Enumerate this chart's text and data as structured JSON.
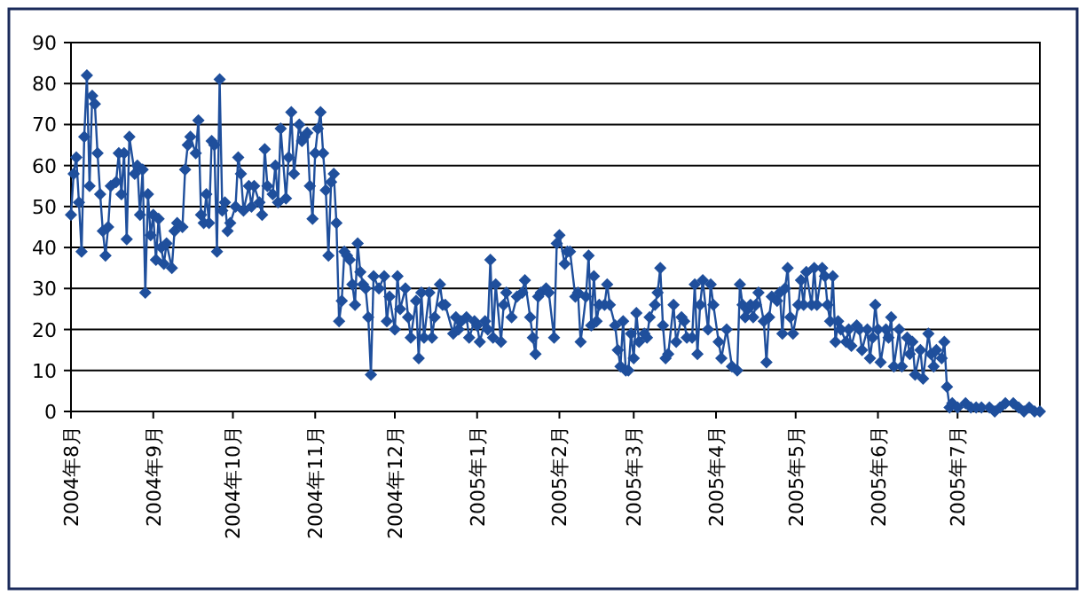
{
  "chart_data": {
    "type": "line",
    "x": [
      "2004-08-01",
      "2004-08-02",
      "2004-08-03",
      "2004-08-04",
      "2004-08-05",
      "2004-08-06",
      "2004-08-07",
      "2004-08-08",
      "2004-08-09",
      "2004-08-10",
      "2004-08-11",
      "2004-08-12",
      "2004-08-13",
      "2004-08-14",
      "2004-08-15",
      "2004-08-16",
      "2004-08-18",
      "2004-08-19",
      "2004-08-20",
      "2004-08-21",
      "2004-08-22",
      "2004-08-23",
      "2004-08-25",
      "2004-08-26",
      "2004-08-27",
      "2004-08-28",
      "2004-08-29",
      "2004-08-30",
      "2004-08-31",
      "2004-09-01",
      "2004-09-02",
      "2004-09-03",
      "2004-09-04",
      "2004-09-05",
      "2004-09-06",
      "2004-09-08",
      "2004-09-09",
      "2004-09-10",
      "2004-09-12",
      "2004-09-13",
      "2004-09-14",
      "2004-09-15",
      "2004-09-17",
      "2004-09-18",
      "2004-09-19",
      "2004-09-20",
      "2004-09-21",
      "2004-09-22",
      "2004-09-23",
      "2004-09-24",
      "2004-09-25",
      "2004-09-26",
      "2004-09-27",
      "2004-09-28",
      "2004-09-29",
      "2004-09-30",
      "2004-10-02",
      "2004-10-03",
      "2004-10-04",
      "2004-10-05",
      "2004-10-07",
      "2004-10-08",
      "2004-10-09",
      "2004-10-11",
      "2004-10-12",
      "2004-10-13",
      "2004-10-14",
      "2004-10-16",
      "2004-10-17",
      "2004-10-18",
      "2004-10-19",
      "2004-10-21",
      "2004-10-22",
      "2004-10-23",
      "2004-10-24",
      "2004-10-26",
      "2004-10-27",
      "2004-10-28",
      "2004-10-29",
      "2004-10-30",
      "2004-10-31",
      "2004-11-01",
      "2004-11-02",
      "2004-11-03",
      "2004-11-04",
      "2004-11-05",
      "2004-11-06",
      "2004-11-07",
      "2004-11-08",
      "2004-11-09",
      "2004-11-10",
      "2004-11-11",
      "2004-11-12",
      "2004-11-13",
      "2004-11-14",
      "2004-11-15",
      "2004-11-16",
      "2004-11-17",
      "2004-11-18",
      "2004-11-19",
      "2004-11-20",
      "2004-11-21",
      "2004-11-22",
      "2004-11-23",
      "2004-11-25",
      "2004-11-27",
      "2004-11-28",
      "2004-11-29",
      "2004-12-01",
      "2004-12-02",
      "2004-12-03",
      "2004-12-05",
      "2004-12-06",
      "2004-12-07",
      "2004-12-09",
      "2004-12-10",
      "2004-12-11",
      "2004-12-12",
      "2004-12-14",
      "2004-12-15",
      "2004-12-16",
      "2004-12-18",
      "2004-12-19",
      "2004-12-20",
      "2004-12-23",
      "2004-12-24",
      "2004-12-25",
      "2004-12-26",
      "2004-12-28",
      "2004-12-29",
      "2004-12-31",
      "2005-01-01",
      "2005-01-02",
      "2005-01-04",
      "2005-01-05",
      "2005-01-06",
      "2005-01-07",
      "2005-01-08",
      "2005-01-10",
      "2005-01-11",
      "2005-01-12",
      "2005-01-14",
      "2005-01-16",
      "2005-01-18",
      "2005-01-19",
      "2005-01-21",
      "2005-01-22",
      "2005-01-23",
      "2005-01-24",
      "2005-01-25",
      "2005-01-27",
      "2005-01-28",
      "2005-01-30",
      "2005-01-31",
      "2005-02-01",
      "2005-02-03",
      "2005-02-04",
      "2005-02-05",
      "2005-02-07",
      "2005-02-08",
      "2005-02-09",
      "2005-02-11",
      "2005-02-12",
      "2005-02-13",
      "2005-02-14",
      "2005-02-15",
      "2005-02-16",
      "2005-02-18",
      "2005-02-19",
      "2005-02-20",
      "2005-02-22",
      "2005-02-23",
      "2005-02-24",
      "2005-02-25",
      "2005-02-26",
      "2005-02-27",
      "2005-02-28",
      "2005-03-01",
      "2005-03-02",
      "2005-03-03",
      "2005-03-05",
      "2005-03-06",
      "2005-03-07",
      "2005-03-09",
      "2005-03-10",
      "2005-03-11",
      "2005-03-12",
      "2005-03-13",
      "2005-03-14",
      "2005-03-16",
      "2005-03-17",
      "2005-03-19",
      "2005-03-20",
      "2005-03-21",
      "2005-03-23",
      "2005-03-24",
      "2005-03-25",
      "2005-03-26",
      "2005-03-27",
      "2005-03-29",
      "2005-03-30",
      "2005-03-31",
      "2005-04-02",
      "2005-04-03",
      "2005-04-05",
      "2005-04-07",
      "2005-04-09",
      "2005-04-10",
      "2005-04-11",
      "2005-04-12",
      "2005-04-13",
      "2005-04-14",
      "2005-04-15",
      "2005-04-16",
      "2005-04-17",
      "2005-04-19",
      "2005-04-20",
      "2005-04-21",
      "2005-04-22",
      "2005-04-24",
      "2005-04-25",
      "2005-04-26",
      "2005-04-27",
      "2005-04-28",
      "2005-04-29",
      "2005-04-30",
      "2005-05-02",
      "2005-05-03",
      "2005-05-04",
      "2005-05-05",
      "2005-05-07",
      "2005-05-08",
      "2005-05-09",
      "2005-05-11",
      "2005-05-12",
      "2005-05-13",
      "2005-05-14",
      "2005-05-15",
      "2005-05-16",
      "2005-05-17",
      "2005-05-18",
      "2005-05-20",
      "2005-05-21",
      "2005-05-22",
      "2005-05-24",
      "2005-05-25",
      "2005-05-26",
      "2005-05-28",
      "2005-05-29",
      "2005-05-30",
      "2005-05-31",
      "2005-06-01",
      "2005-06-02",
      "2005-06-04",
      "2005-06-05",
      "2005-06-06",
      "2005-06-07",
      "2005-06-09",
      "2005-06-10",
      "2005-06-12",
      "2005-06-13",
      "2005-06-14",
      "2005-06-15",
      "2005-06-17",
      "2005-06-18",
      "2005-06-20",
      "2005-06-21",
      "2005-06-22",
      "2005-06-23",
      "2005-06-25",
      "2005-06-26",
      "2005-06-27",
      "2005-06-28",
      "2005-06-29",
      "2005-07-01",
      "2005-07-04",
      "2005-07-06",
      "2005-07-08",
      "2005-07-10",
      "2005-07-13",
      "2005-07-15",
      "2005-07-17",
      "2005-07-19",
      "2005-07-22",
      "2005-07-24",
      "2005-07-26",
      "2005-07-28",
      "2005-07-30",
      "2005-08-01"
    ],
    "series": [
      {
        "color": "#1f4f9c",
        "values": [
          48,
          58,
          62,
          51,
          39,
          67,
          82,
          55,
          77,
          75,
          63,
          53,
          44,
          38,
          45,
          55,
          56,
          63,
          53,
          63,
          42,
          67,
          58,
          60,
          48,
          59,
          29,
          53,
          43,
          48,
          37,
          47,
          40,
          36,
          41,
          35,
          44,
          46,
          45,
          59,
          65,
          67,
          63,
          71,
          48,
          46,
          53,
          46,
          66,
          65,
          39,
          81,
          49,
          51,
          44,
          46,
          50,
          62,
          58,
          49,
          55,
          50,
          55,
          51,
          48,
          64,
          55,
          53,
          60,
          51,
          69,
          52,
          62,
          73,
          58,
          70,
          66,
          67,
          68,
          55,
          47,
          63,
          69,
          73,
          63,
          54,
          38,
          56,
          58,
          46,
          22,
          27,
          39,
          38,
          37,
          31,
          26,
          41,
          34,
          31,
          30,
          23,
          9,
          33,
          30,
          33,
          22,
          28,
          20,
          33,
          25,
          30,
          23,
          18,
          27,
          13,
          29,
          18,
          29,
          18,
          23,
          31,
          26,
          26,
          19,
          23,
          20,
          22,
          23,
          18,
          22,
          21,
          17,
          22,
          20,
          37,
          18,
          31,
          17,
          26,
          29,
          23,
          28,
          29,
          32,
          23,
          18,
          14,
          28,
          29,
          30,
          29,
          18,
          41,
          43,
          36,
          39,
          39,
          28,
          29,
          17,
          28,
          38,
          21,
          33,
          22,
          26,
          26,
          31,
          26,
          21,
          15,
          11,
          22,
          10,
          10,
          19,
          13,
          24,
          17,
          19,
          18,
          23,
          26,
          29,
          35,
          21,
          13,
          14,
          26,
          17,
          23,
          22,
          18,
          18,
          31,
          14,
          26,
          32,
          20,
          31,
          26,
          17,
          13,
          20,
          11,
          10,
          31,
          26,
          23,
          25,
          26,
          23,
          26,
          29,
          22,
          12,
          23,
          28,
          27,
          29,
          19,
          30,
          35,
          23,
          19,
          26,
          32,
          26,
          34,
          26,
          35,
          26,
          35,
          33,
          26,
          22,
          33,
          17,
          22,
          20,
          17,
          20,
          16,
          21,
          20,
          15,
          20,
          13,
          18,
          26,
          20,
          12,
          20,
          18,
          23,
          11,
          20,
          11,
          18,
          14,
          17,
          9,
          15,
          8,
          19,
          14,
          11,
          15,
          13,
          17,
          6,
          1,
          2,
          1,
          2,
          1,
          1,
          1,
          1,
          0,
          1,
          2,
          2,
          1,
          0,
          1,
          0,
          0
        ]
      }
    ],
    "xlim": [
      "2004-08-01",
      "2005-08-01"
    ],
    "xticks": [
      {
        "value": "2004-08-01",
        "label": "2004年8月"
      },
      {
        "value": "2004-09-01",
        "label": "2004年9月"
      },
      {
        "value": "2004-10-01",
        "label": "2004年10月"
      },
      {
        "value": "2004-11-01",
        "label": "2004年11月"
      },
      {
        "value": "2004-12-01",
        "label": "2004年12月"
      },
      {
        "value": "2005-01-01",
        "label": "2005年1月"
      },
      {
        "value": "2005-02-01",
        "label": "2005年2月"
      },
      {
        "value": "2005-03-01",
        "label": "2005年3月"
      },
      {
        "value": "2005-04-01",
        "label": "2005年4月"
      },
      {
        "value": "2005-05-01",
        "label": "2005年5月"
      },
      {
        "value": "2005-06-01",
        "label": "2005年6月"
      },
      {
        "value": "2005-07-01",
        "label": "2005年7月"
      }
    ],
    "ylim": [
      0,
      90
    ],
    "yticks": [
      0,
      10,
      20,
      30,
      40,
      50,
      60,
      70,
      80,
      90
    ],
    "grid": "y",
    "marker": "diamond",
    "line_style": "solid"
  }
}
